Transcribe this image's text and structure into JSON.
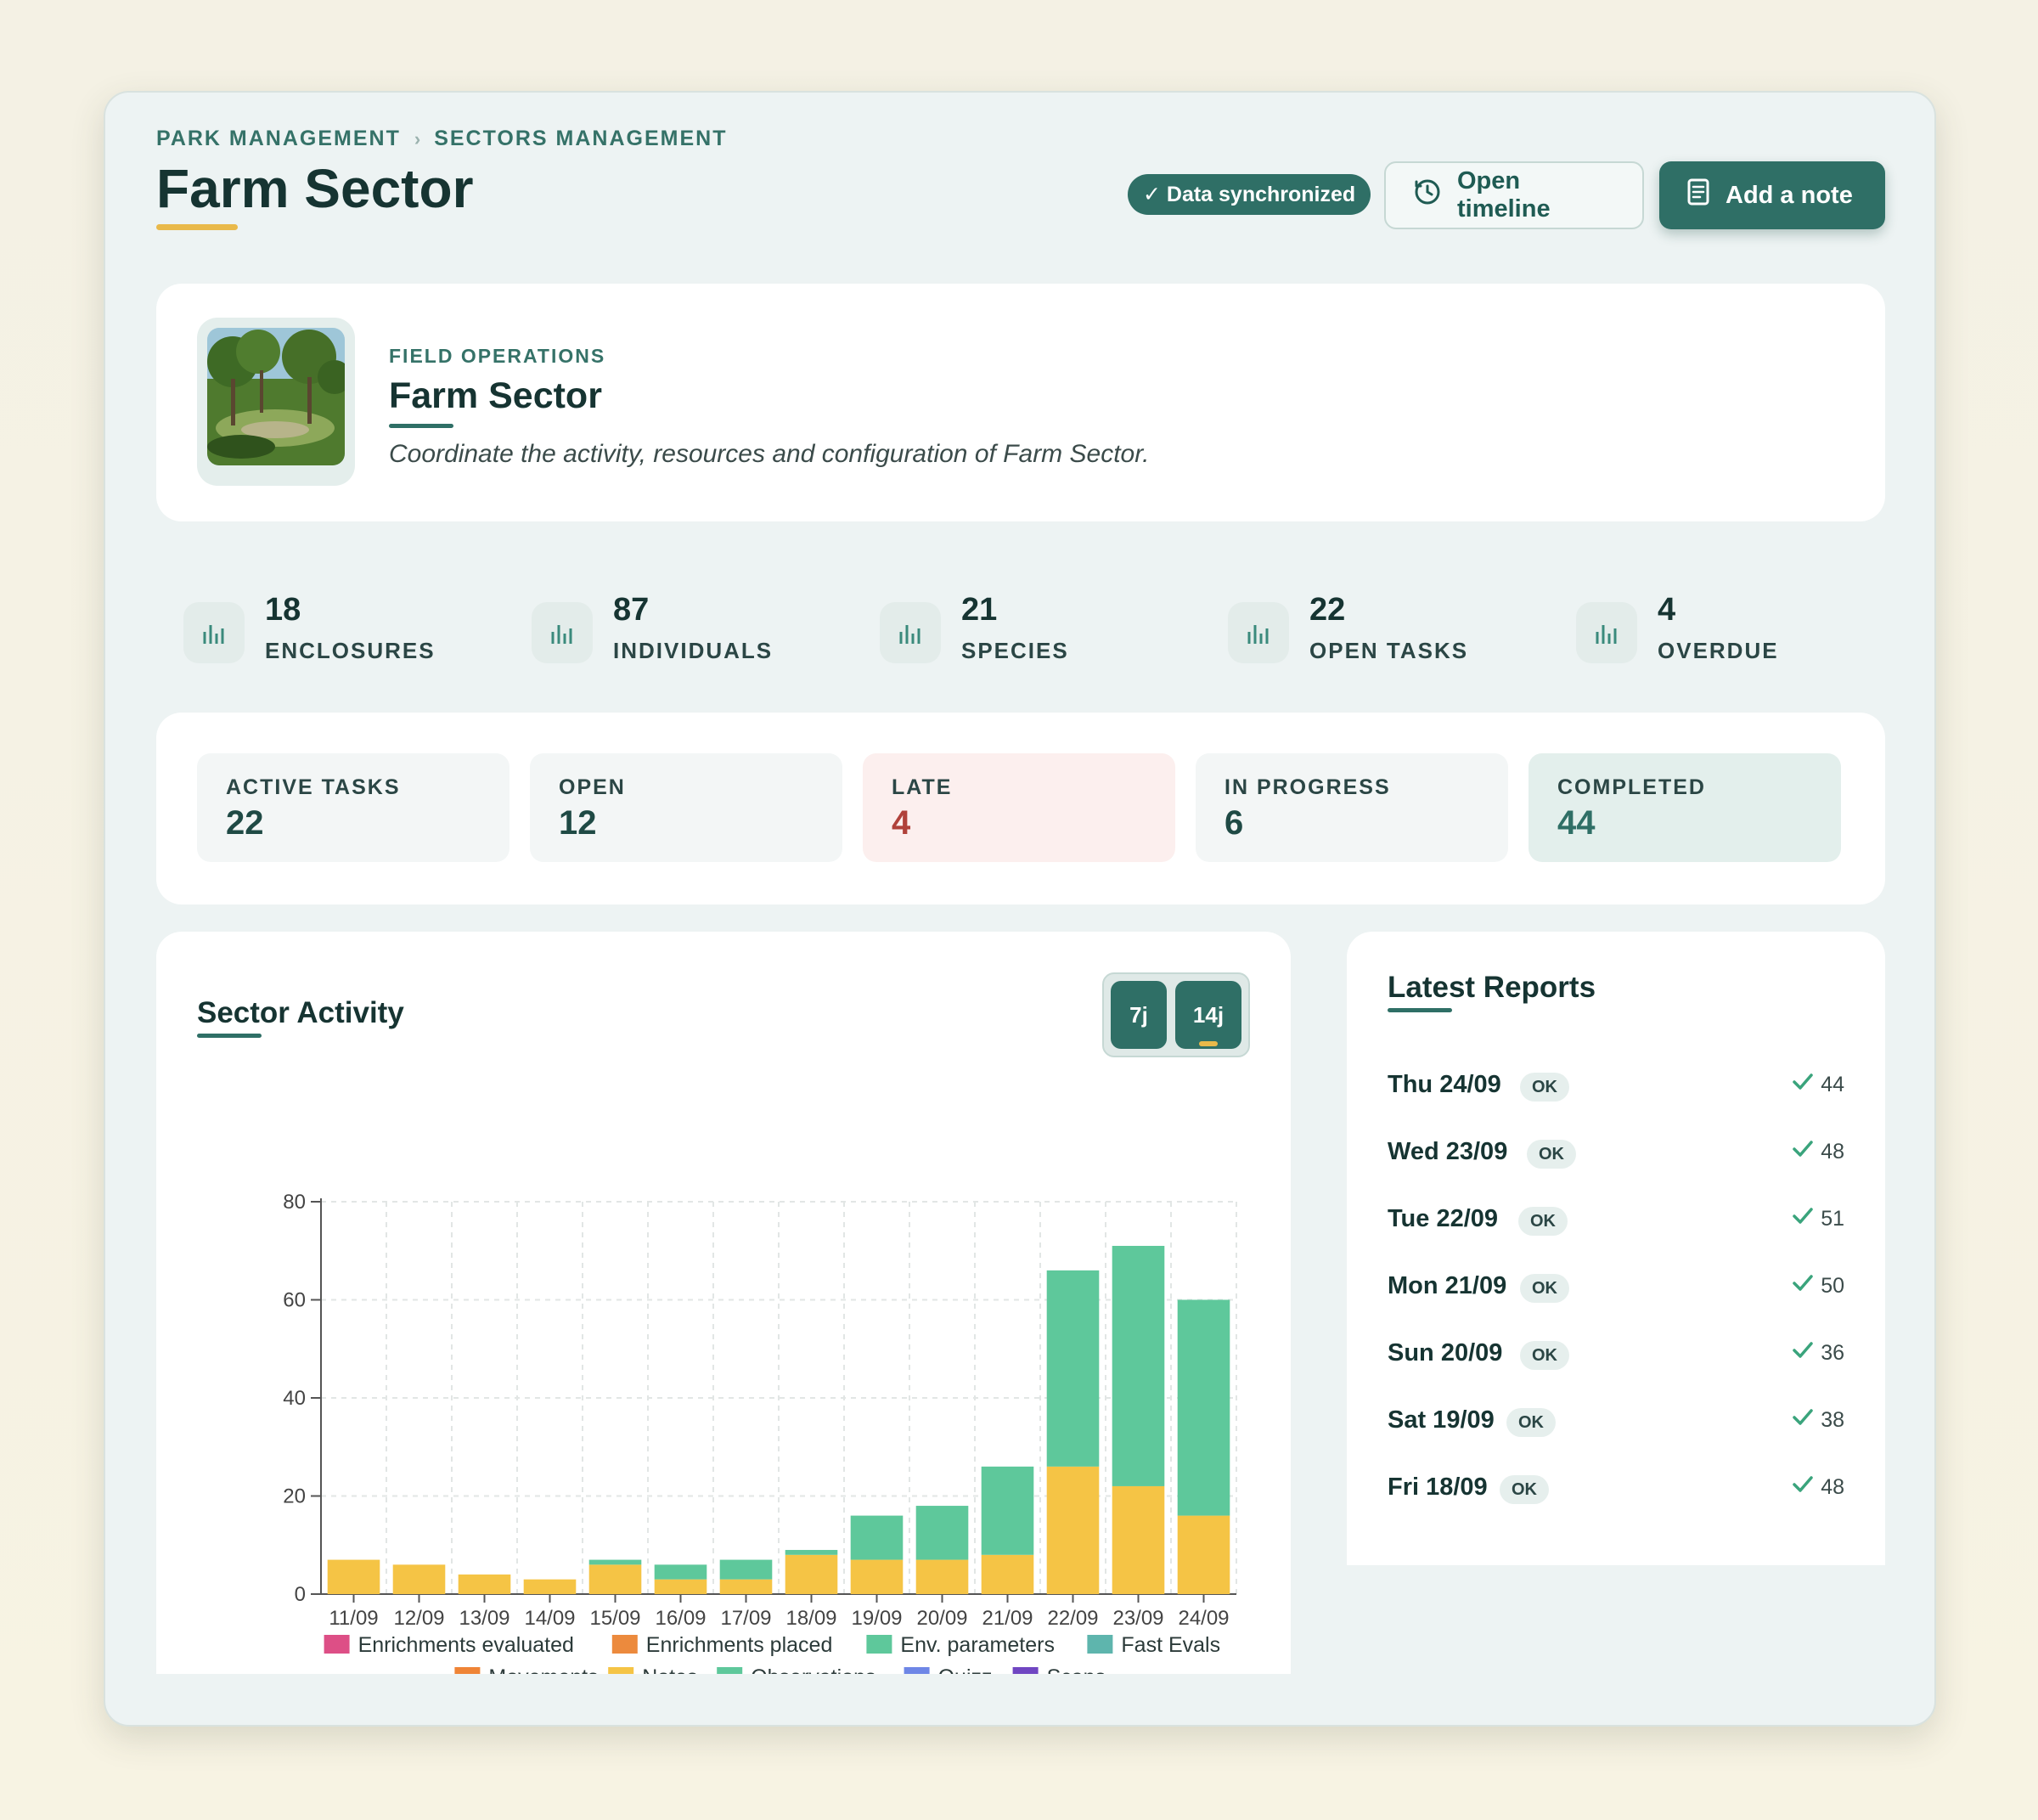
{
  "breadcrumb": [
    "PARK MANAGEMENT",
    "SECTORS MANAGEMENT"
  ],
  "breadcrumb_sep": "›",
  "page_title": "Farm Sector",
  "sync_badge": "✓ Data synchronized",
  "buttons": {
    "open_timeline": "Open timeline",
    "add_note": "Add a note"
  },
  "hero": {
    "eyebrow": "FIELD OPERATIONS",
    "title": "Farm Sector",
    "description": "Coordinate the activity, resources and configuration of Farm Sector."
  },
  "stats": [
    {
      "value": "18",
      "label": "ENCLOSURES"
    },
    {
      "value": "87",
      "label": "INDIVIDUALS"
    },
    {
      "value": "21",
      "label": "SPECIES"
    },
    {
      "value": "22",
      "label": "OPEN TASKS"
    },
    {
      "value": "4",
      "label": "OVERDUE"
    }
  ],
  "tasks": [
    {
      "label": "ACTIVE TASKS",
      "value": "22"
    },
    {
      "label": "OPEN",
      "value": "12"
    },
    {
      "label": "LATE",
      "value": "4"
    },
    {
      "label": "IN PROGRESS",
      "value": "6"
    },
    {
      "label": "COMPLETED",
      "value": "44"
    }
  ],
  "activity": {
    "title": "Sector Activity",
    "range_options": [
      "7j",
      "14j"
    ],
    "selected_range": "14j"
  },
  "chart_data": {
    "type": "bar",
    "stacked": true,
    "title": "",
    "xlabel": "",
    "ylabel": "",
    "ylim": [
      0,
      80
    ],
    "yticks": [
      0,
      20,
      40,
      60,
      80
    ],
    "grid": true,
    "legend_position": "bottom",
    "categories": [
      "11/09",
      "12/09",
      "13/09",
      "14/09",
      "15/09",
      "16/09",
      "17/09",
      "18/09",
      "19/09",
      "20/09",
      "21/09",
      "22/09",
      "23/09",
      "24/09"
    ],
    "series": [
      {
        "name": "Notes",
        "color": "#f5c445",
        "values": [
          7,
          6,
          4,
          3,
          6,
          3,
          3,
          8,
          7,
          7,
          8,
          26,
          22,
          16
        ]
      },
      {
        "name": "Observations",
        "color": "#5ec89b",
        "values": [
          0,
          0,
          0,
          0,
          1,
          3,
          4,
          1,
          9,
          11,
          18,
          40,
          49,
          44
        ]
      }
    ],
    "legend": [
      {
        "name": "Enrichments evaluated",
        "color": "#dd4f86"
      },
      {
        "name": "Enrichments placed",
        "color": "#ec8a3d"
      },
      {
        "name": "Env. parameters",
        "color": "#5ec89b"
      },
      {
        "name": "Fast Evals",
        "color": "#5eb5ad"
      },
      {
        "name": "Movements",
        "color": "#ef8436"
      },
      {
        "name": "Notes",
        "color": "#f5c445"
      },
      {
        "name": "Observations",
        "color": "#5ec89b"
      },
      {
        "name": "Quizz",
        "color": "#6e86e6"
      },
      {
        "name": "Scans",
        "color": "#7046c2"
      }
    ]
  },
  "reports": {
    "title": "Latest Reports",
    "items": [
      {
        "date": "Thu 24/09",
        "status": "OK",
        "count": "44"
      },
      {
        "date": "Wed 23/09",
        "status": "OK",
        "count": "48"
      },
      {
        "date": "Tue 22/09",
        "status": "OK",
        "count": "51"
      },
      {
        "date": "Mon 21/09",
        "status": "OK",
        "count": "50"
      },
      {
        "date": "Sun 20/09",
        "status": "OK",
        "count": "36"
      },
      {
        "date": "Sat 19/09",
        "status": "OK",
        "count": "38"
      },
      {
        "date": "Fri 18/09",
        "status": "OK",
        "count": "48"
      }
    ]
  },
  "icons": {
    "sync": "check-icon",
    "timeline": "clock-icon",
    "note": "document-icon",
    "stat": "bar-chart-icon",
    "report": "check-icon"
  },
  "colors": {
    "accent": "#2f6f66",
    "highlight": "#e9b94a",
    "late": "#b0413a"
  }
}
